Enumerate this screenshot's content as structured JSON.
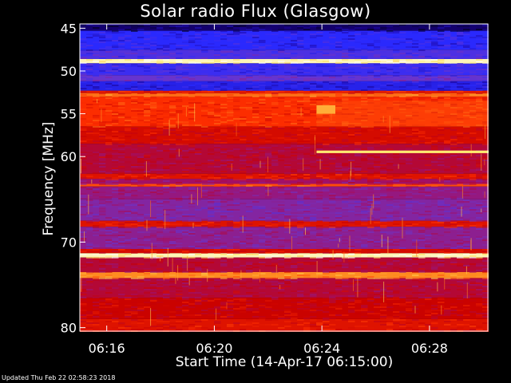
{
  "chart_data": {
    "type": "heatmap",
    "title": "Solar radio Flux (Glasgow)",
    "xlabel": "Start Time (14-Apr-17 06:15:00)",
    "ylabel": "Frequency [MHz]",
    "footer": "Updated Thu Feb 22 02:58:23 2018",
    "x_ticks": [
      "06:16",
      "06:20",
      "06:24",
      "06:28"
    ],
    "x_tick_minutes": [
      16,
      20,
      24,
      28
    ],
    "xlim_minutes": [
      15.0,
      30.2
    ],
    "y_ticks": [
      45,
      50,
      55,
      60,
      70,
      80
    ],
    "ylim": [
      44.5,
      80.5
    ],
    "colorscale": [
      "#000010",
      "#1a0090",
      "#2a2aff",
      "#6e35c8",
      "#a0106a",
      "#c80000",
      "#ff3000",
      "#ff8a20",
      "#ffe860",
      "#ffffff"
    ],
    "bands": [
      {
        "freq": [
          44.5,
          45.3
        ],
        "level": 0.08
      },
      {
        "freq": [
          45.3,
          47.5
        ],
        "level": 0.22
      },
      {
        "freq": [
          47.5,
          48.6
        ],
        "level": 0.28
      },
      {
        "freq": [
          48.6,
          49.1
        ],
        "level": 0.95
      },
      {
        "freq": [
          49.1,
          50.5
        ],
        "level": 0.25
      },
      {
        "freq": [
          50.5,
          51.2
        ],
        "level": 0.32
      },
      {
        "freq": [
          51.2,
          52.3
        ],
        "level": 0.2
      },
      {
        "freq": [
          52.3,
          52.6
        ],
        "level": 0.62
      },
      {
        "freq": [
          52.6,
          53.0
        ],
        "level": 0.74
      },
      {
        "freq": [
          53.0,
          56.5
        ],
        "level": 0.66
      },
      {
        "freq": [
          56.5,
          58.5
        ],
        "level": 0.58
      },
      {
        "freq": [
          58.5,
          62.0
        ],
        "level": 0.5
      },
      {
        "freq": [
          62.0,
          62.6
        ],
        "level": 0.6
      },
      {
        "freq": [
          62.6,
          63.2
        ],
        "level": 0.45
      },
      {
        "freq": [
          63.2,
          63.5
        ],
        "level": 0.7
      },
      {
        "freq": [
          63.5,
          65.0
        ],
        "level": 0.42
      },
      {
        "freq": [
          65.0,
          67.5
        ],
        "level": 0.38
      },
      {
        "freq": [
          67.5,
          68.2
        ],
        "level": 0.6
      },
      {
        "freq": [
          68.2,
          70.8
        ],
        "level": 0.4
      },
      {
        "freq": [
          70.8,
          71.3
        ],
        "level": 0.58
      },
      {
        "freq": [
          71.3,
          71.8
        ],
        "level": 0.95
      },
      {
        "freq": [
          71.8,
          73.5
        ],
        "level": 0.5
      },
      {
        "freq": [
          73.5,
          74.2
        ],
        "level": 0.78
      },
      {
        "freq": [
          74.2,
          76.5
        ],
        "level": 0.5
      },
      {
        "freq": [
          76.5,
          79.0
        ],
        "level": 0.56
      },
      {
        "freq": [
          79.0,
          80.5
        ],
        "level": 0.6
      }
    ],
    "events": [
      {
        "time_minutes": [
          23.8,
          30.2
        ],
        "freq": [
          59.3,
          59.6
        ],
        "level": 0.9
      },
      {
        "time_minutes": [
          23.8,
          24.5
        ],
        "freq": [
          54.0,
          55.0
        ],
        "level": 0.82
      },
      {
        "time_minutes": [
          23.8,
          30.2
        ],
        "freq": [
          53.5,
          56.5
        ],
        "level": 0.72
      }
    ]
  }
}
